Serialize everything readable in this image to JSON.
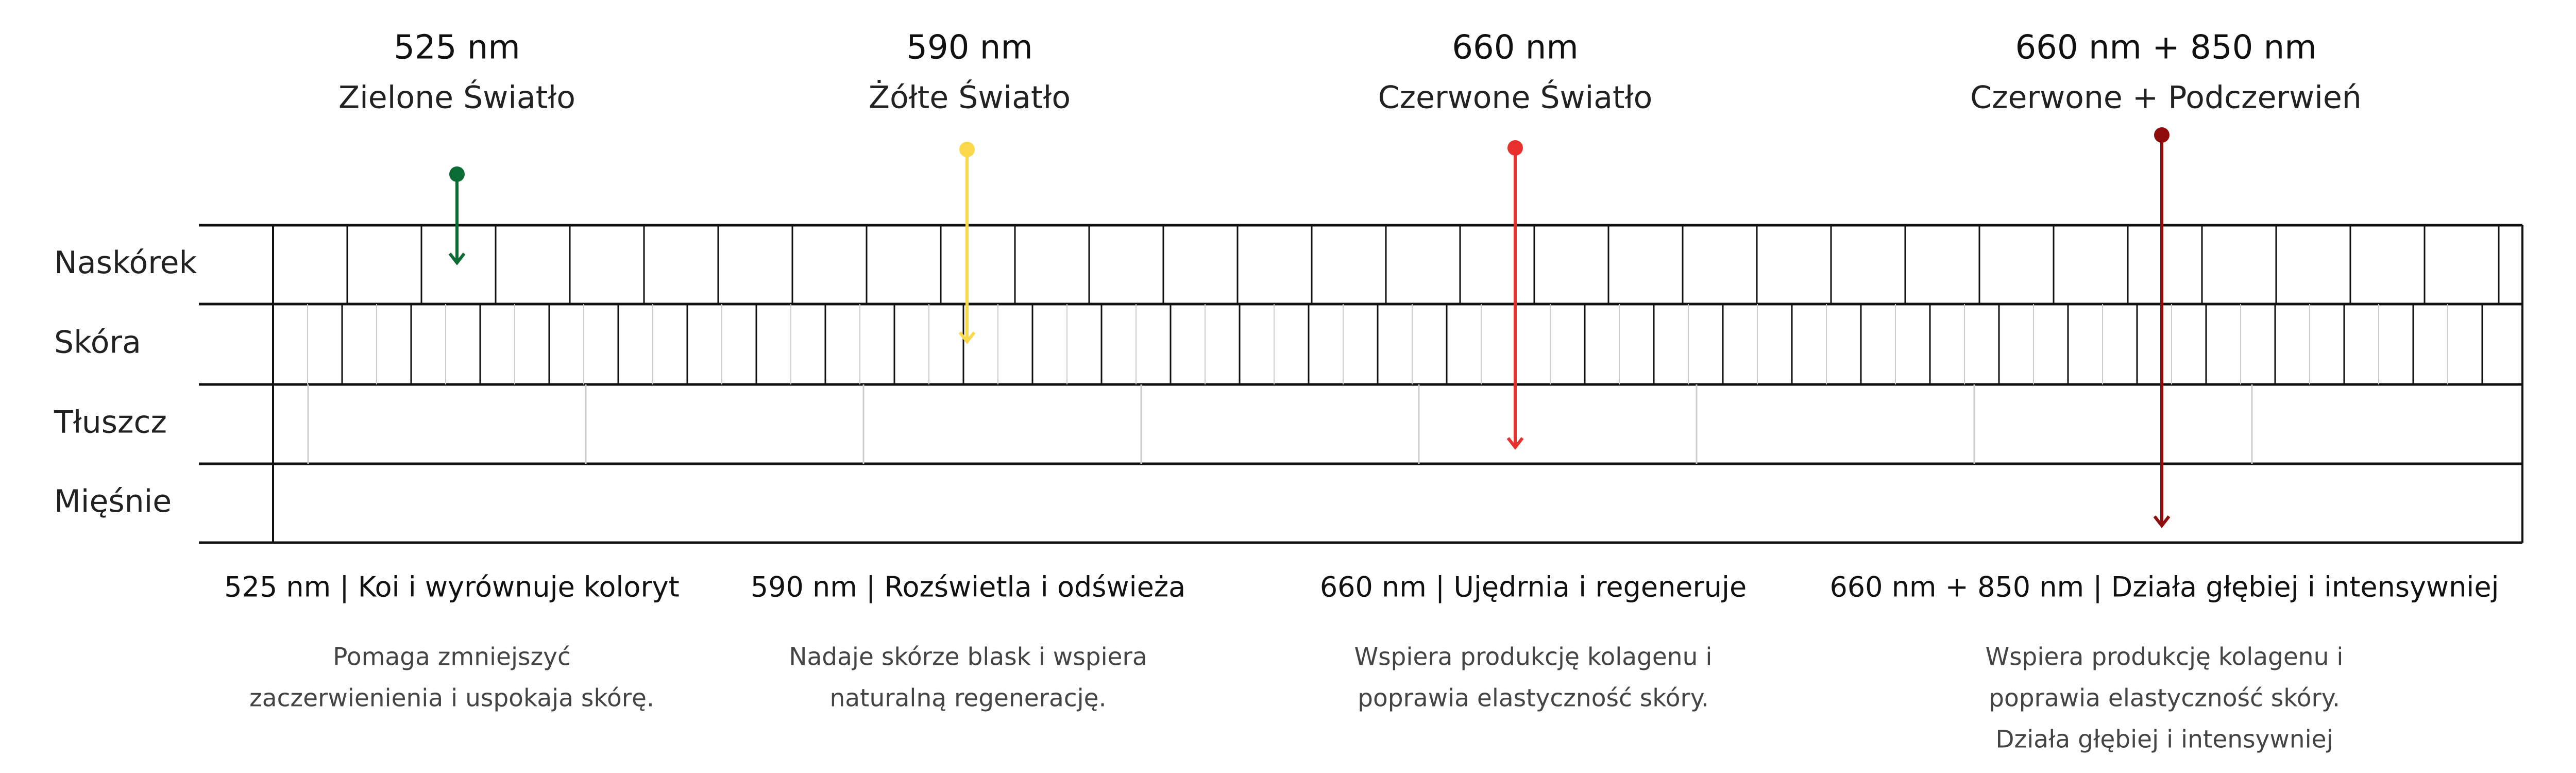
{
  "lights": [
    {
      "wavelength": "525 nm",
      "name": "Zielone Światło",
      "title": "525 nm | Koi i wyrównuje koloryt",
      "lines": [
        "Pomaga zmniejszyć",
        "zaczerwienienia i uspokaja skórę."
      ]
    },
    {
      "wavelength": "590 nm",
      "name": "Żółte Światło",
      "title": "590 nm | Rozświetla i odświeża",
      "lines": [
        "Nadaje skórze blask i wspiera",
        "naturalną regenerację."
      ]
    },
    {
      "wavelength": "660 nm",
      "name": "Czerwone Światło",
      "title": "660 nm | Ujędrnia i regeneruje",
      "lines": [
        "Wspiera produkcję kolagenu i",
        "poprawia elastyczność skóry."
      ]
    },
    {
      "wavelength": "660 nm + 850 nm",
      "name": "Czerwone + Podczerwień",
      "title": "660 nm + 850 nm | Działa głębiej i intensywniej",
      "lines": [
        "Wspiera produkcję kolagenu i",
        "poprawia elastyczność skóry.",
        "Działa głębiej i intensywniej"
      ]
    }
  ],
  "layers": [
    "Naskórek",
    "Skóra",
    "Tłuszcz",
    "Mięśnie"
  ]
}
